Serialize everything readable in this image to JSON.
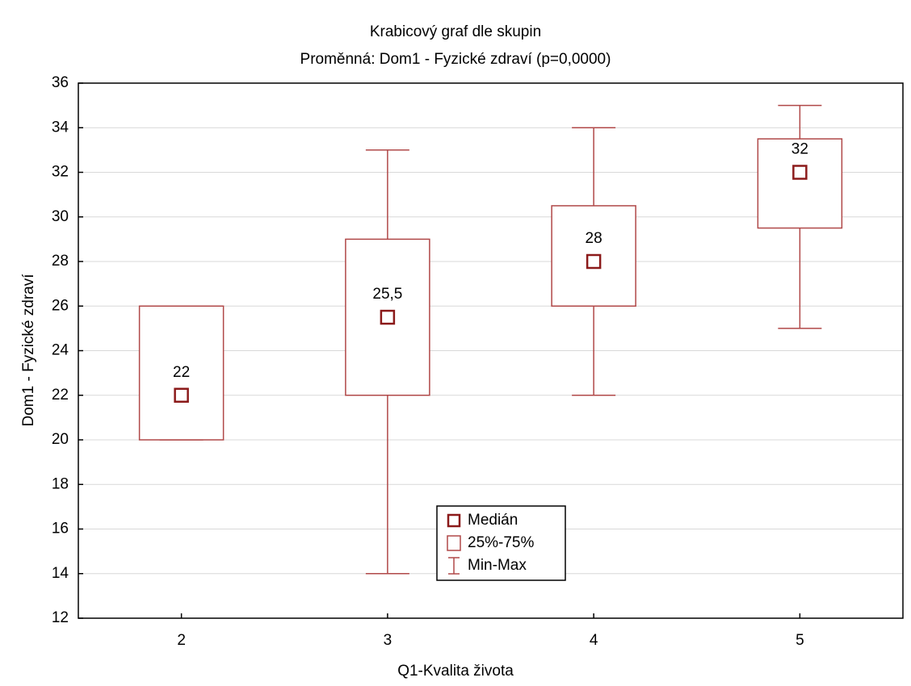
{
  "chart_data": {
    "type": "box",
    "title": "Krabicový graf dle skupin",
    "subtitle": "Proměnná: Dom1 - Fyzické zdraví (p=0,0000)",
    "x_label": "Q1-Kvalita života",
    "y_label": "Dom1 - Fyzické zdraví",
    "categories": [
      "2",
      "3",
      "4",
      "5"
    ],
    "series": [
      {
        "name": "Medián",
        "color": "#8b1a1a",
        "values": [
          22,
          25.5,
          28,
          32
        ],
        "value_labels": [
          "22",
          "25,5",
          "28",
          "32"
        ]
      },
      {
        "name": "25%-75%",
        "color": "#b04848",
        "q1": [
          20,
          22,
          26,
          29.5
        ],
        "q3": [
          26,
          29,
          30.5,
          33.5
        ]
      },
      {
        "name": "Min-Max",
        "color": "#b04848",
        "min": [
          20,
          14,
          22,
          25
        ],
        "max": [
          26,
          33,
          34,
          35
        ]
      }
    ],
    "ylim": [
      12,
      36
    ],
    "yticks": [
      12,
      14,
      16,
      18,
      20,
      22,
      24,
      26,
      28,
      30,
      32,
      34,
      36
    ],
    "grid": true
  }
}
